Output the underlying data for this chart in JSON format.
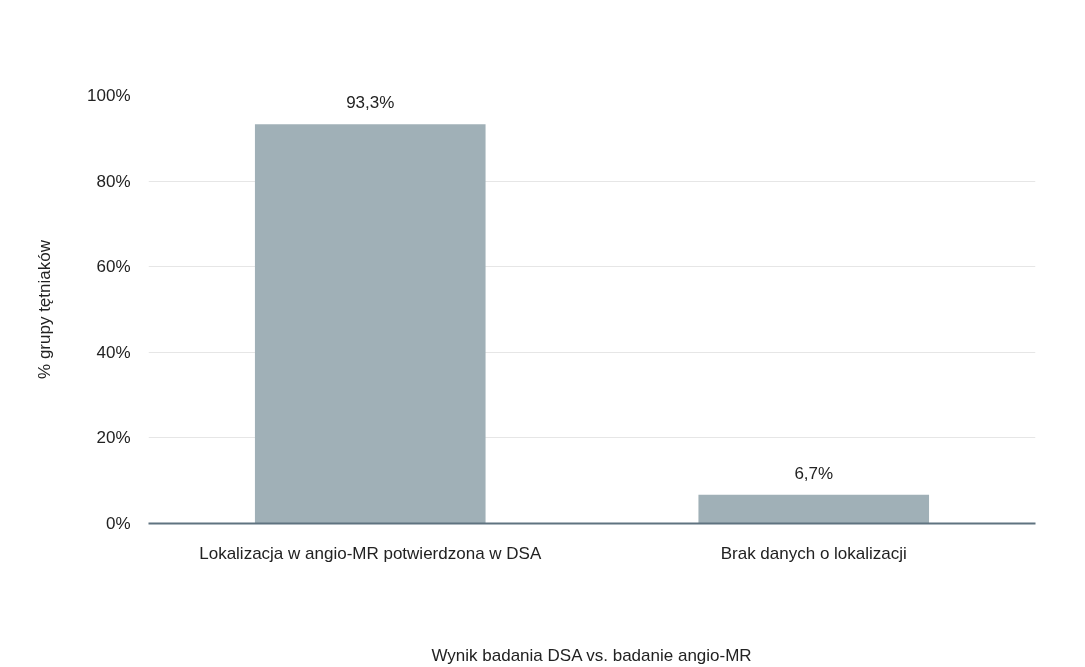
{
  "chart_data": {
    "type": "bar",
    "xlabel": "Wynik badania DSA vs. badanie angio-MR",
    "ylabel": "% grupy tętniaków",
    "categories": [
      "Lokalizacja w angio-MR potwierdzona w DSA",
      "Brak danych o lokalizacji"
    ],
    "values": [
      93.3,
      6.7
    ],
    "value_labels": [
      "93,3%",
      "6,7%"
    ],
    "color": "#a0b0b7",
    "ylim": [
      0,
      100
    ],
    "yticks": [
      {
        "value": 0,
        "label": "0%"
      },
      {
        "value": 20,
        "label": "20%"
      },
      {
        "value": 40,
        "label": "40%"
      },
      {
        "value": 60,
        "label": "60%"
      },
      {
        "value": 80,
        "label": "80%"
      },
      {
        "value": 100,
        "label": "100%"
      }
    ],
    "grid": "y"
  }
}
